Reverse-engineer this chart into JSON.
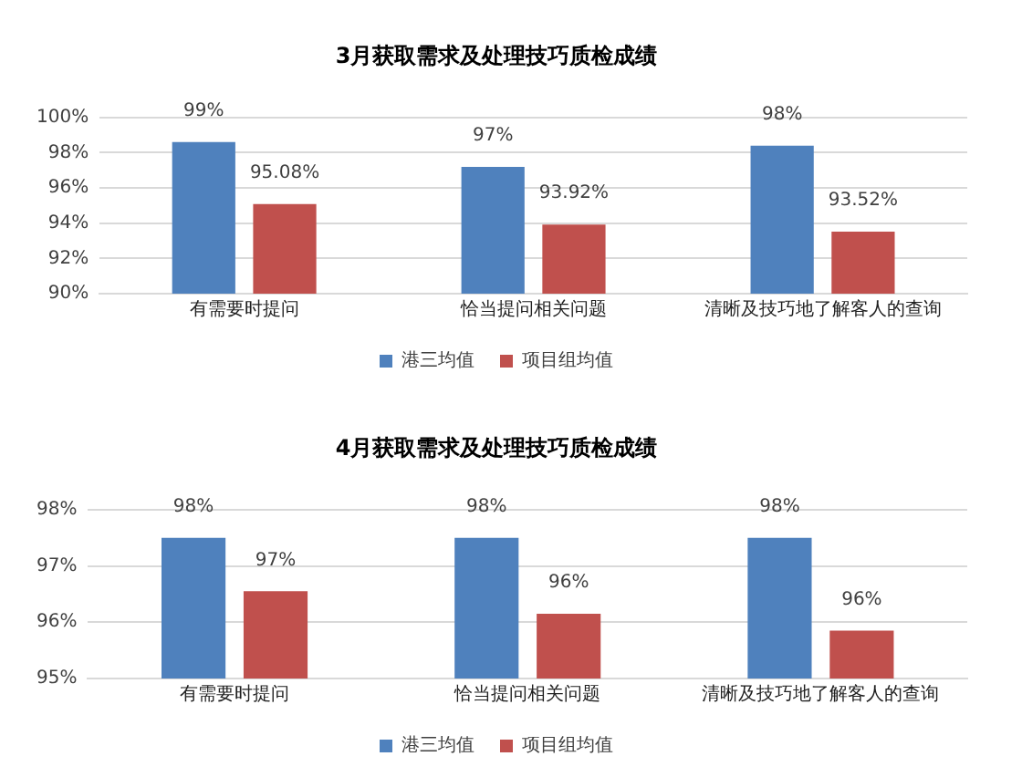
{
  "chart_data": [
    {
      "type": "bar",
      "title": "3月获取需求及处理技巧质检成绩",
      "categories": [
        "有需要时提问",
        "恰当提问相关问题",
        "清晰及技巧地了解客人的查询"
      ],
      "series": [
        {
          "name": "港三均值",
          "color": "#4f81bd",
          "values": [
            98.6,
            97.2,
            98.4
          ],
          "value_labels": [
            "99%",
            "97%",
            "98%"
          ]
        },
        {
          "name": "项目组均值",
          "color": "#c0504d",
          "values": [
            95.08,
            93.92,
            93.52
          ],
          "value_labels": [
            "95.08%",
            "93.92%",
            "93.52%"
          ]
        }
      ],
      "ylim": [
        90,
        100
      ],
      "yticks": [
        {
          "value": 90,
          "label": "90%"
        },
        {
          "value": 92,
          "label": "92%"
        },
        {
          "value": 94,
          "label": "94%"
        },
        {
          "value": 96,
          "label": "96%"
        },
        {
          "value": 98,
          "label": "98%"
        },
        {
          "value": 100,
          "label": "100%"
        }
      ],
      "grid": "y",
      "legend": "bottom"
    },
    {
      "type": "bar",
      "title": "4月获取需求及处理技巧质检成绩",
      "categories": [
        "有需要时提问",
        "恰当提问相关问题",
        "清晰及技巧地了解客人的查询"
      ],
      "series": [
        {
          "name": "港三均值",
          "color": "#4f81bd",
          "values": [
            97.5,
            97.5,
            97.5
          ],
          "value_labels": [
            "98%",
            "98%",
            "98%"
          ]
        },
        {
          "name": "项目组均值",
          "color": "#c0504d",
          "values": [
            96.55,
            96.15,
            95.85
          ],
          "value_labels": [
            "97%",
            "96%",
            "96%"
          ]
        }
      ],
      "ylim": [
        95,
        98
      ],
      "yticks": [
        {
          "value": 95,
          "label": "95%"
        },
        {
          "value": 96,
          "label": "96%"
        },
        {
          "value": 97,
          "label": "97%"
        },
        {
          "value": 98,
          "label": "98%"
        }
      ],
      "grid": "y",
      "legend": "bottom"
    }
  ]
}
